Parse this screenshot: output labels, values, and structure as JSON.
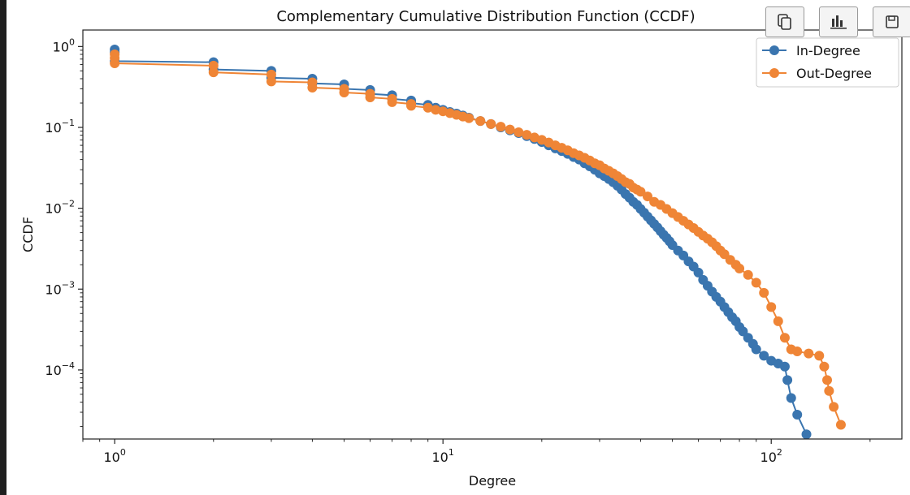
{
  "toolbar": {
    "buttons": [
      {
        "icon": "copy-icon"
      },
      {
        "icon": "bar-chart-icon"
      },
      {
        "icon": "save-icon"
      }
    ]
  },
  "chart_data": {
    "type": "scatter",
    "title": "Complementary Cumulative Distribution Function (CCDF)",
    "xlabel": "Degree",
    "ylabel": "CCDF",
    "xscale": "log",
    "yscale": "log",
    "xlim": [
      0.8,
      250
    ],
    "ylim": [
      1.4e-05,
      1.6
    ],
    "xticks": [
      {
        "value": 1,
        "base": "10",
        "exp": "0"
      },
      {
        "value": 10,
        "base": "10",
        "exp": "1"
      },
      {
        "value": 100,
        "base": "10",
        "exp": "2"
      }
    ],
    "yticks": [
      {
        "value": 1,
        "base": "10",
        "exp": "0"
      },
      {
        "value": 0.1,
        "base": "10",
        "exp": "−1"
      },
      {
        "value": 0.01,
        "base": "10",
        "exp": "−2"
      },
      {
        "value": 0.001,
        "base": "10",
        "exp": "−3"
      },
      {
        "value": 0.0001,
        "base": "10",
        "exp": "−4"
      }
    ],
    "grid": false,
    "legend_position": "top-right",
    "colors": {
      "in": "#3a75af",
      "out": "#ef8536"
    },
    "series": [
      {
        "name": "In-Degree",
        "color": "#3a75af",
        "x": [
          1,
          1,
          1,
          2,
          2,
          3,
          3,
          4,
          4,
          5,
          5,
          6,
          6,
          7,
          7,
          8,
          8,
          9,
          9.5,
          10,
          10.5,
          11,
          11.5,
          12,
          13,
          14,
          15,
          16,
          17,
          18,
          19,
          20,
          21,
          22,
          23,
          24,
          25,
          26,
          27,
          28,
          29,
          30,
          31,
          32,
          33,
          34,
          35,
          36,
          37,
          38,
          39,
          40,
          41,
          42,
          43,
          44,
          45,
          46,
          47,
          48,
          49,
          50,
          52,
          54,
          56,
          58,
          60,
          62,
          64,
          66,
          68,
          70,
          72,
          74,
          76,
          78,
          80,
          82,
          85,
          88,
          90,
          95,
          100,
          105,
          110,
          112,
          115,
          120,
          128
        ],
        "y": [
          0.92,
          0.85,
          0.66,
          0.64,
          0.52,
          0.5,
          0.41,
          0.4,
          0.35,
          0.34,
          0.3,
          0.29,
          0.26,
          0.25,
          0.225,
          0.215,
          0.2,
          0.19,
          0.175,
          0.165,
          0.155,
          0.148,
          0.14,
          0.132,
          0.12,
          0.11,
          0.1,
          0.092,
          0.085,
          0.078,
          0.072,
          0.066,
          0.06,
          0.055,
          0.051,
          0.047,
          0.043,
          0.04,
          0.036,
          0.033,
          0.03,
          0.027,
          0.025,
          0.023,
          0.021,
          0.019,
          0.017,
          0.015,
          0.0135,
          0.012,
          0.011,
          0.0098,
          0.0088,
          0.0079,
          0.0071,
          0.0064,
          0.0058,
          0.0052,
          0.0047,
          0.0043,
          0.0039,
          0.0035,
          0.003,
          0.0026,
          0.0022,
          0.0019,
          0.0016,
          0.0013,
          0.0011,
          0.00093,
          0.0008,
          0.0007,
          0.0006,
          0.00052,
          0.00045,
          0.0004,
          0.00034,
          0.0003,
          0.00025,
          0.00021,
          0.00018,
          0.00015,
          0.00013,
          0.00012,
          0.00011,
          7.5e-05,
          4.5e-05,
          2.8e-05,
          1.6e-05
        ]
      },
      {
        "name": "Out-Degree",
        "color": "#ef8536",
        "x": [
          1,
          1,
          1,
          2,
          2,
          3,
          3,
          4,
          4,
          5,
          5,
          6,
          6,
          7,
          7,
          8,
          8,
          9,
          9.5,
          10,
          10.5,
          11,
          11.5,
          12,
          13,
          14,
          15,
          16,
          17,
          18,
          19,
          20,
          21,
          22,
          23,
          24,
          25,
          26,
          27,
          28,
          29,
          30,
          31,
          32,
          33,
          34,
          35,
          36,
          37,
          38,
          39,
          40,
          42,
          44,
          46,
          48,
          50,
          52,
          54,
          56,
          58,
          60,
          62,
          64,
          66,
          68,
          70,
          72,
          75,
          78,
          80,
          85,
          90,
          95,
          100,
          105,
          110,
          115,
          120,
          130,
          140,
          145,
          148,
          150,
          155,
          163
        ],
        "y": [
          0.8,
          0.72,
          0.62,
          0.58,
          0.48,
          0.45,
          0.37,
          0.36,
          0.31,
          0.3,
          0.27,
          0.26,
          0.235,
          0.225,
          0.205,
          0.195,
          0.185,
          0.175,
          0.165,
          0.158,
          0.15,
          0.143,
          0.136,
          0.13,
          0.12,
          0.11,
          0.102,
          0.094,
          0.087,
          0.081,
          0.075,
          0.07,
          0.065,
          0.06,
          0.056,
          0.052,
          0.048,
          0.045,
          0.042,
          0.039,
          0.036,
          0.034,
          0.031,
          0.029,
          0.027,
          0.025,
          0.023,
          0.021,
          0.02,
          0.018,
          0.017,
          0.016,
          0.014,
          0.012,
          0.011,
          0.0098,
          0.0087,
          0.0078,
          0.007,
          0.0063,
          0.0057,
          0.0051,
          0.0046,
          0.0042,
          0.0038,
          0.0034,
          0.003,
          0.0027,
          0.0023,
          0.002,
          0.0018,
          0.0015,
          0.0012,
          0.0009,
          0.0006,
          0.0004,
          0.00025,
          0.00018,
          0.00017,
          0.00016,
          0.00015,
          0.00011,
          7.5e-05,
          5.5e-05,
          3.5e-05,
          2.1e-05
        ]
      }
    ]
  }
}
